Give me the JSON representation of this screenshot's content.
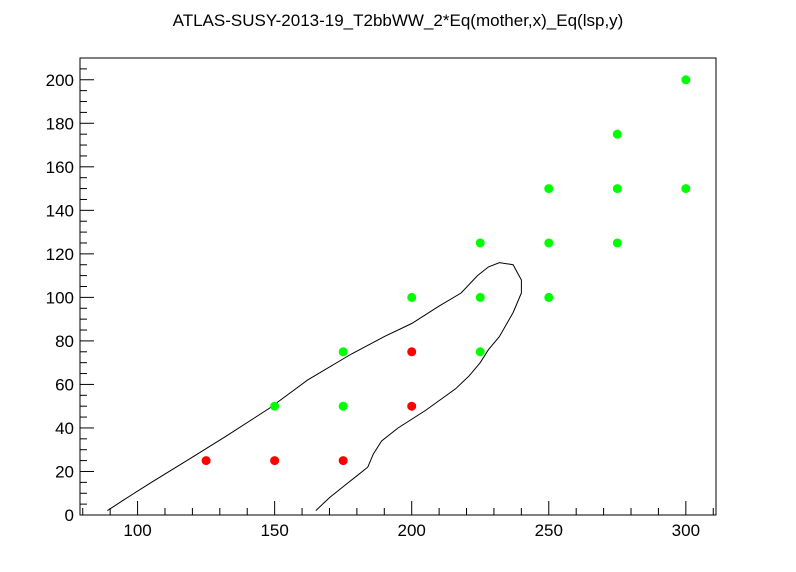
{
  "chart_data": {
    "type": "scatter",
    "title": "ATLAS-SUSY-2013-19_T2bbWW_2*Eq(mother,x)_Eq(lsp,y)",
    "xlabel": "",
    "ylabel": "",
    "xlim": [
      79,
      311
    ],
    "ylim": [
      0,
      210
    ],
    "x_ticks": [
      100,
      150,
      200,
      250,
      300
    ],
    "y_ticks": [
      0,
      20,
      40,
      60,
      80,
      100,
      120,
      140,
      160,
      180,
      200
    ],
    "grid": false,
    "series": [
      {
        "color": "#ff0000",
        "points": [
          [
            125,
            25
          ],
          [
            150,
            25
          ],
          [
            175,
            25
          ],
          [
            200,
            75
          ],
          [
            200,
            50
          ]
        ]
      },
      {
        "color": "#00ff00",
        "points": [
          [
            150,
            50
          ],
          [
            175,
            50
          ],
          [
            175,
            75
          ],
          [
            200,
            100
          ],
          [
            225,
            125
          ],
          [
            225,
            100
          ],
          [
            225,
            75
          ],
          [
            250,
            150
          ],
          [
            250,
            125
          ],
          [
            250,
            100
          ],
          [
            275,
            175
          ],
          [
            275,
            150
          ],
          [
            275,
            125
          ],
          [
            300,
            200
          ],
          [
            300,
            150
          ]
        ]
      }
    ],
    "contour": {
      "color": "#000000",
      "points": [
        [
          89,
          2
        ],
        [
          95,
          7
        ],
        [
          105,
          15
        ],
        [
          118,
          25
        ],
        [
          132,
          36
        ],
        [
          148,
          49
        ],
        [
          162,
          62
        ],
        [
          178,
          74
        ],
        [
          190,
          82
        ],
        [
          200,
          88
        ],
        [
          210,
          96
        ],
        [
          218,
          102
        ],
        [
          224,
          110
        ],
        [
          228,
          114
        ],
        [
          232,
          116
        ],
        [
          237,
          115
        ],
        [
          240,
          108
        ],
        [
          240,
          102
        ],
        [
          237,
          93
        ],
        [
          232,
          82
        ],
        [
          228,
          76
        ],
        [
          225,
          70
        ],
        [
          221,
          64
        ],
        [
          216,
          58
        ],
        [
          205,
          48
        ],
        [
          195,
          40
        ],
        [
          189,
          34
        ],
        [
          186,
          28
        ],
        [
          184,
          22
        ],
        [
          180,
          18
        ],
        [
          176,
          14
        ],
        [
          170,
          8
        ],
        [
          165,
          2
        ]
      ]
    }
  }
}
